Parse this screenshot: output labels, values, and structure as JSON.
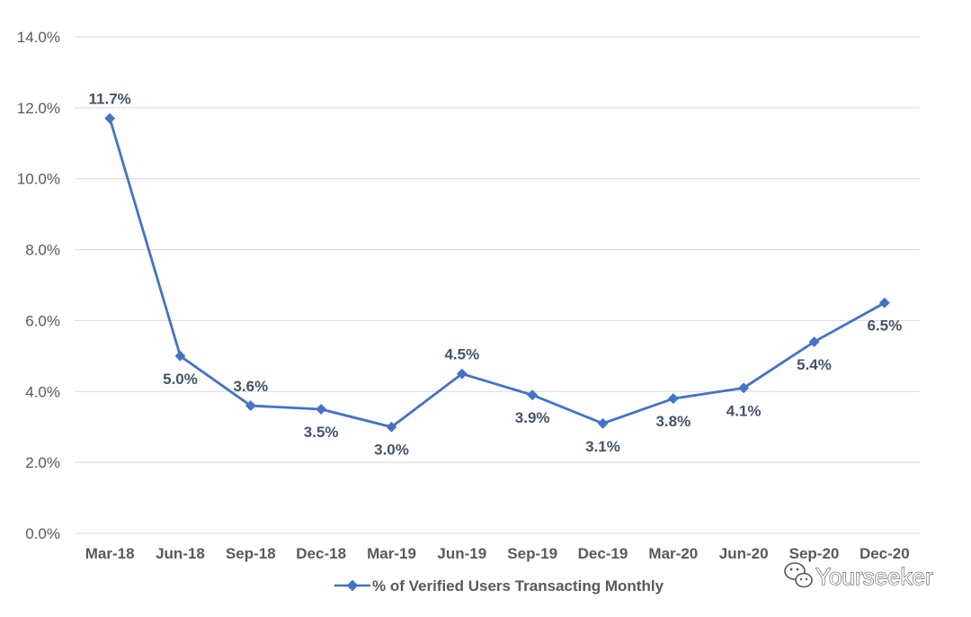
{
  "chart_data": {
    "type": "line",
    "title": "",
    "xlabel": "",
    "ylabel": "",
    "categories": [
      "Mar-18",
      "Jun-18",
      "Sep-18",
      "Dec-18",
      "Mar-19",
      "Jun-19",
      "Sep-19",
      "Dec-19",
      "Mar-20",
      "Jun-20",
      "Sep-20",
      "Dec-20"
    ],
    "series": [
      {
        "name": "% of Verified Users Transacting Monthly",
        "values": [
          11.7,
          5.0,
          3.6,
          3.5,
          3.0,
          4.5,
          3.9,
          3.1,
          3.8,
          4.1,
          5.4,
          6.5
        ],
        "labels": [
          "11.7%",
          "5.0%",
          "3.6%",
          "3.5%",
          "3.0%",
          "4.5%",
          "3.9%",
          "3.1%",
          "3.8%",
          "4.1%",
          "5.4%",
          "6.5%"
        ],
        "label_positions": [
          "above",
          "below",
          "above",
          "below",
          "below",
          "above",
          "below",
          "below",
          "below",
          "below",
          "below",
          "below"
        ],
        "color": "#4472C4"
      }
    ],
    "ylim": [
      0,
      14
    ],
    "yticks": [
      0,
      2,
      4,
      6,
      8,
      10,
      12,
      14
    ],
    "ytick_labels": [
      "0.0%",
      "2.0%",
      "4.0%",
      "6.0%",
      "8.0%",
      "10.0%",
      "12.0%",
      "14.0%"
    ],
    "grid": true,
    "legend_position": "bottom"
  },
  "watermark": {
    "text": "Yourseeker"
  }
}
